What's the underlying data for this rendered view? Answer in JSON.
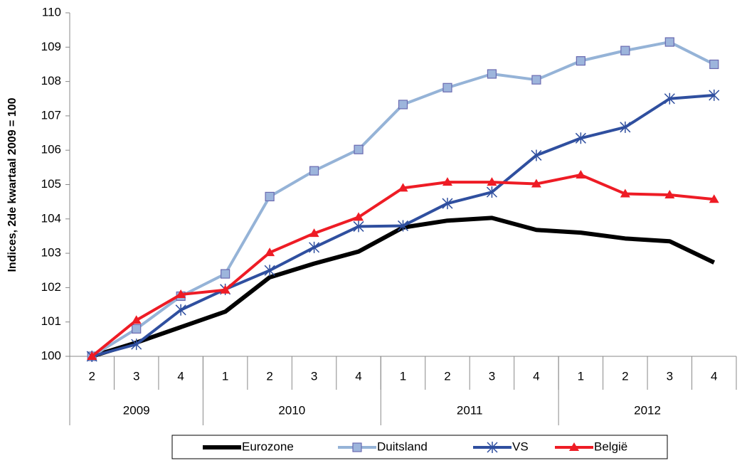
{
  "chart_data": {
    "type": "line",
    "y_label": "Indices, 2de kwartaal 2009 = 100",
    "categories": [
      "2",
      "3",
      "4",
      "1",
      "2",
      "3",
      "4",
      "1",
      "2",
      "3",
      "4",
      "1",
      "2",
      "3",
      "4"
    ],
    "groups": [
      {
        "label": "2009",
        "span": 3
      },
      {
        "label": "2010",
        "span": 4
      },
      {
        "label": "2011",
        "span": 4
      },
      {
        "label": "2012",
        "span": 4
      }
    ],
    "series": [
      {
        "name": "Eurozone",
        "color": "#000000",
        "marker": "none",
        "values": [
          100,
          100.4,
          100.85,
          101.3,
          102.3,
          102.7,
          103.05,
          103.75,
          103.95,
          104.03,
          103.68,
          103.6,
          103.43,
          103.35,
          102.73
        ]
      },
      {
        "name": "Duitsland",
        "color": "#95b3d7",
        "marker": "square",
        "values": [
          100,
          100.8,
          101.75,
          102.4,
          104.65,
          105.4,
          106.02,
          107.33,
          107.82,
          108.22,
          108.05,
          108.6,
          108.9,
          109.15,
          108.5
        ]
      },
      {
        "name": "VS",
        "color": "#2f4f9f",
        "marker": "asterisk",
        "values": [
          100,
          100.35,
          101.35,
          101.95,
          102.5,
          103.17,
          103.78,
          103.8,
          104.45,
          104.78,
          105.85,
          106.35,
          106.67,
          107.5,
          107.6
        ]
      },
      {
        "name": "België",
        "color": "#ee1c25",
        "marker": "triangle",
        "values": [
          100,
          101.05,
          101.8,
          101.93,
          103.02,
          103.58,
          104.05,
          104.9,
          105.07,
          105.07,
          105.02,
          105.28,
          104.73,
          104.7,
          104.57
        ]
      }
    ],
    "ylim": [
      100,
      110
    ],
    "yticks": [
      100,
      101,
      102,
      103,
      104,
      105,
      106,
      107,
      108,
      109,
      110
    ],
    "legend": "bottom"
  }
}
